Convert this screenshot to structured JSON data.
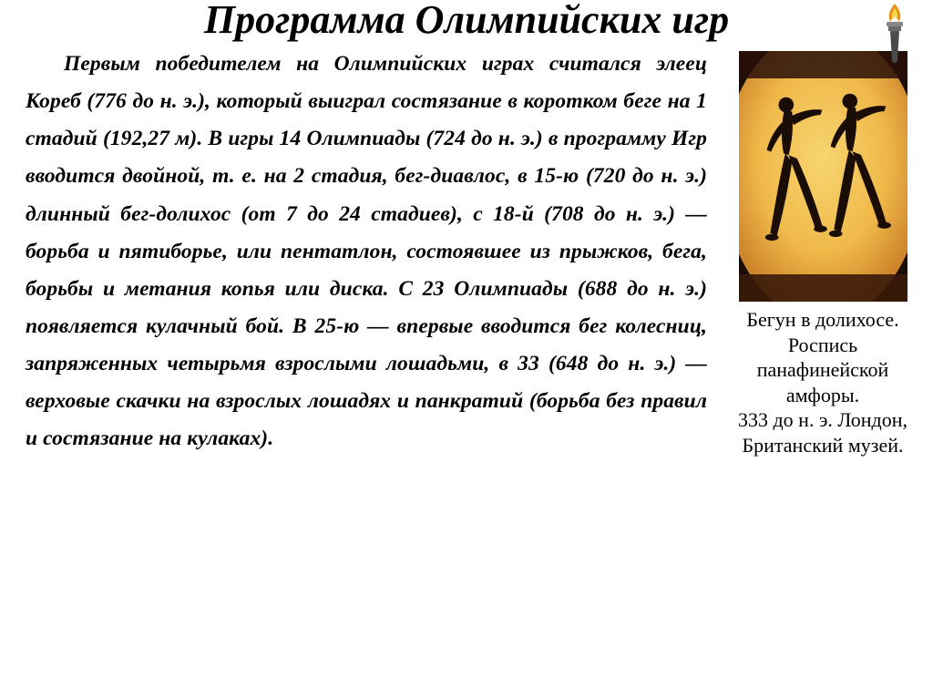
{
  "title": "Программа Олимпийских игр",
  "body": "Первым победителем на Олимпийских играх считался элеец Кореб (776 до н. э.), который выиграл состязание в коротком беге на 1 стадий (192,27 м). В игры 14 Олимпиады (724 до н. э.) в программу Игр вводится двойной, т. е. на 2 стадия, бег-диавлос, в 15-ю (720 до н. э.) длинный бег-долихос (от 7 до 24 стадиев), с 18-й (708 до н. э.) — борьба и пятиборье, или пентатлон, состоявшее из прыжков, бега, борьбы и метания копья или диска. С 23 Олимпиады (688 до н. э.) появляется кулачный бой. В 25-ю — впервые вводится бег колесниц, запряженных четырьмя взрослыми лошадьми, в 33 (648 до н. э.) — верховые скачки на взрослых лошадях и панкратий (борьба без правил и состязание на кулаках).",
  "caption": "Бегун в долихосе.\nРоспись панафинейской амфоры.\n333 до н. э. Лондон, Британский музей.",
  "colors": {
    "amphora_bg_top": "#d89a3a",
    "amphora_bg_mid": "#f5c552",
    "amphora_bg_bot": "#b56a1f",
    "amphora_border": "#2a1108",
    "figure_color": "#1a0d06",
    "flame_outer": "#e8901a",
    "flame_inner": "#f3d94a",
    "torch_body": "#4a4a4a",
    "torch_rim": "#888888"
  }
}
